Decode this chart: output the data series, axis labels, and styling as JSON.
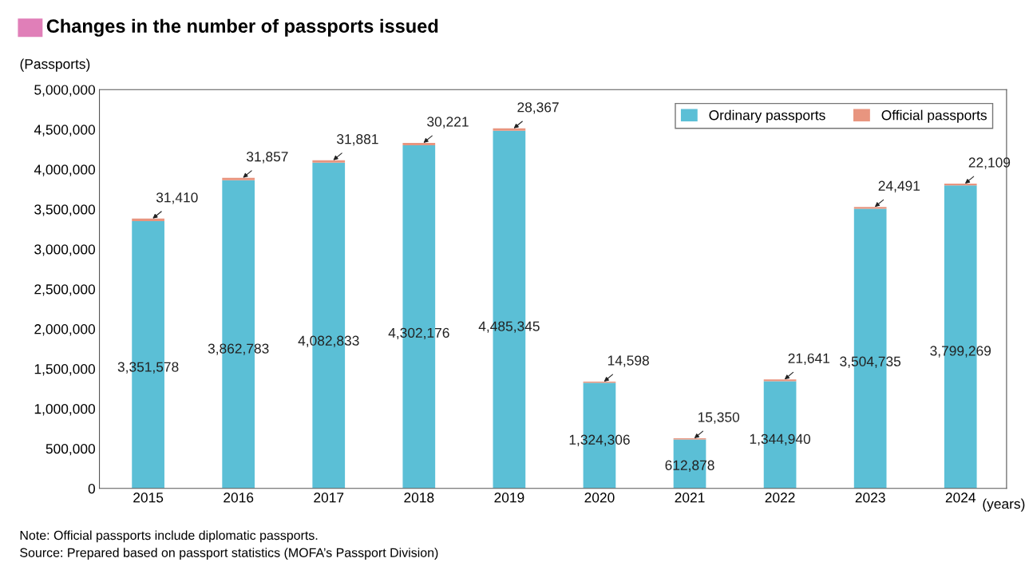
{
  "chart_data": {
    "type": "bar",
    "title": "Changes in the number of passports issued",
    "categories": [
      "2015",
      "2016",
      "2017",
      "2018",
      "2019",
      "2020",
      "2021",
      "2022",
      "2023",
      "2024"
    ],
    "xlabel": "(years)",
    "ylabel": "(Passports)",
    "stacked": true,
    "legend": "top right",
    "grid": false,
    "ylim": [
      0,
      5000000
    ],
    "yticks": [
      0,
      {
        "value": 500000,
        "label": "500,000"
      },
      {
        "value": 1000000,
        "label": "1,000,000"
      },
      {
        "value": 1500000,
        "label": "1,500,000"
      },
      {
        "value": 2000000,
        "label": "2,000,000"
      },
      {
        "value": 2500000,
        "label": "2,500,000"
      },
      {
        "value": 3000000,
        "label": "3,000,000"
      },
      {
        "value": 3500000,
        "label": "3,500,000"
      },
      {
        "value": 4000000,
        "label": "4,000,000"
      },
      {
        "value": 4500000,
        "label": "4,500,000"
      },
      {
        "value": 5000000,
        "label": "5,000,000"
      }
    ],
    "series": [
      {
        "name": "Ordinary passports",
        "color": "#5bbfd6",
        "values": [
          3351578,
          3862783,
          4082833,
          4302176,
          4485345,
          1324306,
          612878,
          1344940,
          3504735,
          3799269
        ],
        "value_labels": [
          "3,351,578",
          "3,862,783",
          "4,082,833",
          "4,302,176",
          "4,485,345",
          "1,324,306",
          "612,878",
          "1,344,940",
          "3,504,735",
          "3,799,269"
        ]
      },
      {
        "name": "Official passports",
        "color": "#e8957f",
        "values": [
          31410,
          31857,
          31881,
          30221,
          28367,
          14598,
          15350,
          21641,
          24491,
          22109
        ],
        "value_labels": [
          "31,410",
          "31,857",
          "31,881",
          "30,221",
          "28,367",
          "14,598",
          "15,350",
          "21,641",
          "24,491",
          "22,109"
        ]
      }
    ],
    "annotations": [
      "Note: Official passports include diplomatic passports.",
      "Source: Prepared based on passport statistics (MOFA’s Passport Division)"
    ]
  }
}
